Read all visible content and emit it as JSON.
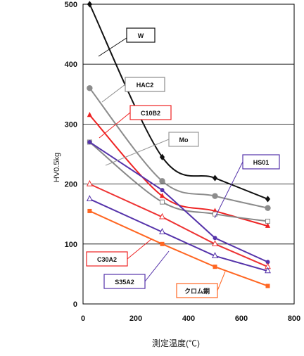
{
  "chart_data": {
    "type": "line",
    "ylabel": "HV0.5kg",
    "xlabel": "測定温度(℃)",
    "xlim": [
      0,
      800
    ],
    "ylim": [
      0,
      500
    ],
    "x_ticks": [
      "0",
      "200",
      "400",
      "600",
      "800"
    ],
    "y_ticks": [
      "0",
      "100",
      "200",
      "300",
      "400",
      "500"
    ],
    "grid": "horizontal",
    "series": [
      {
        "name": "W",
        "color": "#111111",
        "marker": "diamond",
        "x": [
          25,
          300,
          500,
          700
        ],
        "y": [
          500,
          245,
          210,
          175
        ],
        "curve": true
      },
      {
        "name": "HAC2",
        "color": "#8c8c8c",
        "marker": "circle",
        "x": [
          25,
          300,
          500,
          700
        ],
        "y": [
          360,
          205,
          180,
          160
        ],
        "curve": true
      },
      {
        "name": "C10B2",
        "color": "#ee2222",
        "marker": "triangle-filled",
        "x": [
          25,
          300,
          500,
          700
        ],
        "y": [
          315,
          180,
          155,
          130
        ],
        "curve": true
      },
      {
        "name": "Mo",
        "color": "#888888",
        "marker": "square-open",
        "x": [
          25,
          300,
          500,
          700
        ],
        "y": [
          270,
          170,
          150,
          138
        ],
        "curve": true
      },
      {
        "name": "HS01",
        "color": "#5533aa",
        "marker": "circle-filled",
        "x": [
          25,
          300,
          500,
          700
        ],
        "y": [
          270,
          190,
          110,
          70
        ],
        "curve": false
      },
      {
        "name": "C30A2",
        "color": "#ee3333",
        "marker": "triangle-open",
        "x": [
          25,
          300,
          500,
          700
        ],
        "y": [
          200,
          145,
          100,
          62
        ],
        "curve": false
      },
      {
        "name": "S35A2",
        "color": "#5533aa",
        "marker": "triangle-open",
        "x": [
          25,
          300,
          500,
          700
        ],
        "y": [
          175,
          120,
          80,
          55
        ],
        "curve": false
      },
      {
        "name": "クロム銅",
        "color": "#ff6622",
        "marker": "square-filled",
        "x": [
          25,
          300,
          500,
          700
        ],
        "y": [
          155,
          100,
          62,
          30
        ],
        "curve": false
      }
    ],
    "annotations": [
      {
        "text": "W",
        "border": "#111111"
      },
      {
        "text": "HAC2",
        "border": "#8c8c8c"
      },
      {
        "text": "C10B2",
        "border": "#ee2222"
      },
      {
        "text": "Mo",
        "border": "#999999"
      },
      {
        "text": "HS01",
        "border": "#5533aa"
      },
      {
        "text": "C30A2",
        "border": "#ee2222"
      },
      {
        "text": "S35A2",
        "border": "#5533aa"
      },
      {
        "text": "クロム銅",
        "border": "#ff6622"
      }
    ]
  }
}
